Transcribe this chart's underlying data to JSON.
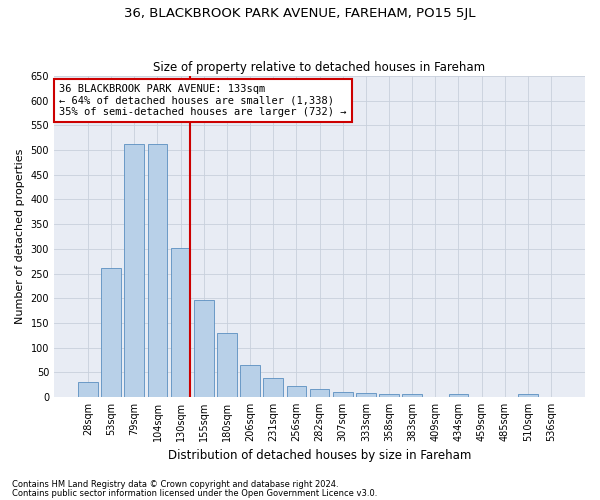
{
  "title1": "36, BLACKBROOK PARK AVENUE, FAREHAM, PO15 5JL",
  "title2": "Size of property relative to detached houses in Fareham",
  "xlabel": "Distribution of detached houses by size in Fareham",
  "ylabel": "Number of detached properties",
  "footnote1": "Contains HM Land Registry data © Crown copyright and database right 2024.",
  "footnote2": "Contains public sector information licensed under the Open Government Licence v3.0.",
  "categories": [
    "28sqm",
    "53sqm",
    "79sqm",
    "104sqm",
    "130sqm",
    "155sqm",
    "180sqm",
    "206sqm",
    "231sqm",
    "256sqm",
    "282sqm",
    "307sqm",
    "333sqm",
    "358sqm",
    "383sqm",
    "409sqm",
    "434sqm",
    "459sqm",
    "485sqm",
    "510sqm",
    "536sqm"
  ],
  "values": [
    31,
    261,
    513,
    513,
    302,
    196,
    130,
    65,
    38,
    22,
    16,
    10,
    7,
    5,
    5,
    0,
    5,
    0,
    0,
    5,
    0
  ],
  "bar_color": "#b8d0e8",
  "bar_edge_color": "#5a8fc0",
  "highlight_line_index": 4,
  "highlight_line_color": "#cc0000",
  "annotation_line1": "36 BLACKBROOK PARK AVENUE: 133sqm",
  "annotation_line2": "← 64% of detached houses are smaller (1,338)",
  "annotation_line3": "35% of semi-detached houses are larger (732) →",
  "annotation_box_color": "#cc0000",
  "ylim": [
    0,
    650
  ],
  "yticks": [
    0,
    50,
    100,
    150,
    200,
    250,
    300,
    350,
    400,
    450,
    500,
    550,
    600,
    650
  ],
  "grid_color": "#c8d0dc",
  "background_color": "#e8ecf4",
  "title1_fontsize": 9.5,
  "title2_fontsize": 8.5,
  "ylabel_fontsize": 8,
  "xlabel_fontsize": 8.5,
  "annot_fontsize": 7.5,
  "tick_fontsize": 7,
  "footnote_fontsize": 6
}
